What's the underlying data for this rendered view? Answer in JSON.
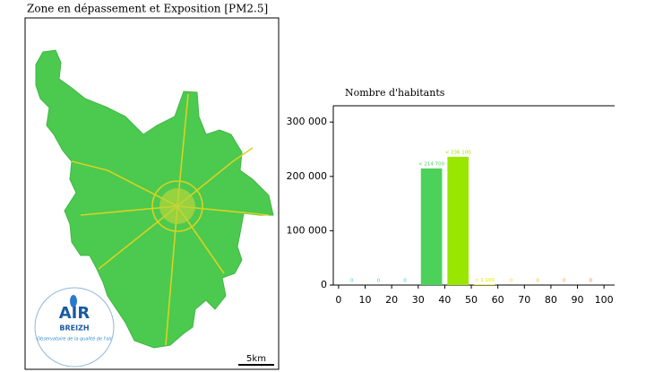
{
  "map": {
    "title": "Zone en dépassement et Exposition [PM2.5]",
    "scale_label": "5km",
    "logo": {
      "name": "AIR",
      "region": "BREIZH",
      "tagline": "Observatoire de la qualité de l'air"
    }
  },
  "chart_data": {
    "type": "histogram",
    "title": "Nombre d'habitants",
    "bins": [
      0,
      10,
      20,
      30,
      40,
      50,
      60,
      70,
      80,
      90,
      100
    ],
    "values": [
      0,
      0,
      0,
      214700,
      236100,
      1100,
      0,
      0,
      0,
      0
    ],
    "value_labels": [
      "0",
      "0",
      "0",
      "< 214 700",
      "< 236 100",
      "< 1 100",
      "0",
      "0",
      "0",
      "0"
    ],
    "colors": [
      "#3cc8c8",
      "#3cc8c8",
      "#3cc8c8",
      "#4cd15a",
      "#99e600",
      "#e6e600",
      "#f0d040",
      "#f0b030",
      "#f09a30",
      "#f07a30"
    ],
    "xlim": [
      -2,
      104
    ],
    "ylim": [
      0,
      330000
    ],
    "xticks": [
      0,
      10,
      20,
      30,
      40,
      50,
      60,
      70,
      80,
      90,
      100
    ],
    "yticks": [
      0,
      {
        "value": 100000,
        "label": "100 000"
      },
      {
        "value": 200000,
        "label": "200 000"
      },
      {
        "value": 300000,
        "label": "300 000"
      }
    ]
  }
}
